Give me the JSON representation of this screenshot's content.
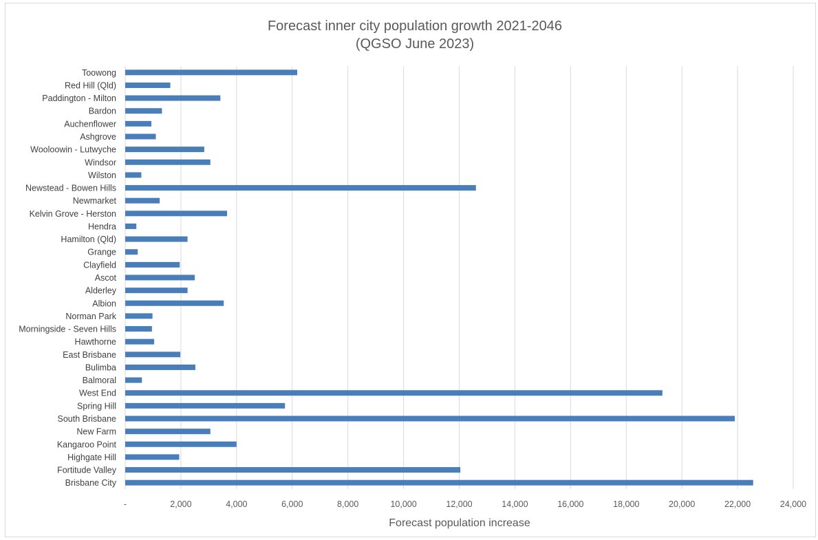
{
  "chart_data": {
    "type": "bar",
    "orientation": "horizontal",
    "title": "Forecast inner city population growth 2021-2046",
    "subtitle": "(QGSO June 2023)",
    "xlabel": "Forecast population increase",
    "ylabel": "",
    "xlim": [
      0,
      24000
    ],
    "x_ticks": [
      0,
      2000,
      4000,
      6000,
      8000,
      10000,
      12000,
      14000,
      16000,
      18000,
      20000,
      22000,
      24000
    ],
    "x_tick_labels": [
      "-",
      "2,000",
      "4,000",
      "6,000",
      "8,000",
      "10,000",
      "12,000",
      "14,000",
      "16,000",
      "18,000",
      "20,000",
      "22,000",
      "24,000"
    ],
    "grid": true,
    "legend": "none",
    "bar_color": "#4a7ebb",
    "categories": [
      "Toowong",
      "Red Hill (Qld)",
      "Paddington - Milton",
      "Bardon",
      "Auchenflower",
      "Ashgrove",
      "Wooloowin - Lutwyche",
      "Windsor",
      "Wilston",
      "Newstead - Bowen Hills",
      "Newmarket",
      "Kelvin Grove - Herston",
      "Hendra",
      "Hamilton (Qld)",
      "Grange",
      "Clayfield",
      "Ascot",
      "Alderley",
      "Albion",
      "Norman Park",
      "Morningside - Seven Hills",
      "Hawthorne",
      "East Brisbane",
      "Bulimba",
      "Balmoral",
      "West End",
      "Spring Hill",
      "South Brisbane",
      "New Farm",
      "Kangaroo Point",
      "Highgate Hill",
      "Fortitude Valley",
      "Brisbane City"
    ],
    "values": [
      6180,
      1620,
      3420,
      1320,
      940,
      1100,
      2840,
      3060,
      580,
      12600,
      1240,
      3660,
      400,
      2240,
      450,
      1960,
      2500,
      2240,
      3540,
      980,
      960,
      1040,
      1980,
      2520,
      600,
      19300,
      5740,
      21900,
      3060,
      4000,
      1940,
      12040,
      22560
    ]
  }
}
